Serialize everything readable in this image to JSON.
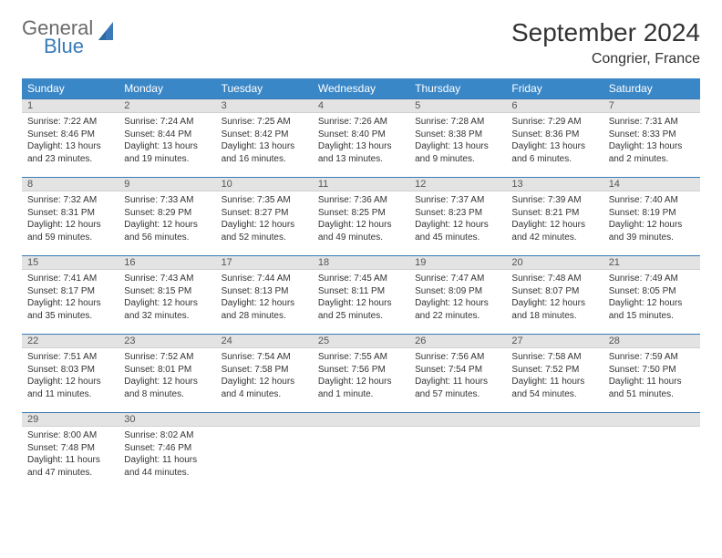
{
  "brand": {
    "part1": "General",
    "part2": "Blue"
  },
  "title": "September 2024",
  "location": "Congrier, France",
  "colors": {
    "header_bg": "#3a87c7",
    "header_text": "#ffffff",
    "daynum_bg": "#e3e3e3",
    "rule": "#3a7ab8",
    "body_text": "#333333",
    "logo_gray": "#6a6a6a",
    "logo_blue": "#3a7ab8"
  },
  "weekdays": [
    "Sunday",
    "Monday",
    "Tuesday",
    "Wednesday",
    "Thursday",
    "Friday",
    "Saturday"
  ],
  "weeks": [
    [
      {
        "n": "1",
        "sr": "7:22 AM",
        "ss": "8:46 PM",
        "dl": "13 hours and 23 minutes."
      },
      {
        "n": "2",
        "sr": "7:24 AM",
        "ss": "8:44 PM",
        "dl": "13 hours and 19 minutes."
      },
      {
        "n": "3",
        "sr": "7:25 AM",
        "ss": "8:42 PM",
        "dl": "13 hours and 16 minutes."
      },
      {
        "n": "4",
        "sr": "7:26 AM",
        "ss": "8:40 PM",
        "dl": "13 hours and 13 minutes."
      },
      {
        "n": "5",
        "sr": "7:28 AM",
        "ss": "8:38 PM",
        "dl": "13 hours and 9 minutes."
      },
      {
        "n": "6",
        "sr": "7:29 AM",
        "ss": "8:36 PM",
        "dl": "13 hours and 6 minutes."
      },
      {
        "n": "7",
        "sr": "7:31 AM",
        "ss": "8:33 PM",
        "dl": "13 hours and 2 minutes."
      }
    ],
    [
      {
        "n": "8",
        "sr": "7:32 AM",
        "ss": "8:31 PM",
        "dl": "12 hours and 59 minutes."
      },
      {
        "n": "9",
        "sr": "7:33 AM",
        "ss": "8:29 PM",
        "dl": "12 hours and 56 minutes."
      },
      {
        "n": "10",
        "sr": "7:35 AM",
        "ss": "8:27 PM",
        "dl": "12 hours and 52 minutes."
      },
      {
        "n": "11",
        "sr": "7:36 AM",
        "ss": "8:25 PM",
        "dl": "12 hours and 49 minutes."
      },
      {
        "n": "12",
        "sr": "7:37 AM",
        "ss": "8:23 PM",
        "dl": "12 hours and 45 minutes."
      },
      {
        "n": "13",
        "sr": "7:39 AM",
        "ss": "8:21 PM",
        "dl": "12 hours and 42 minutes."
      },
      {
        "n": "14",
        "sr": "7:40 AM",
        "ss": "8:19 PM",
        "dl": "12 hours and 39 minutes."
      }
    ],
    [
      {
        "n": "15",
        "sr": "7:41 AM",
        "ss": "8:17 PM",
        "dl": "12 hours and 35 minutes."
      },
      {
        "n": "16",
        "sr": "7:43 AM",
        "ss": "8:15 PM",
        "dl": "12 hours and 32 minutes."
      },
      {
        "n": "17",
        "sr": "7:44 AM",
        "ss": "8:13 PM",
        "dl": "12 hours and 28 minutes."
      },
      {
        "n": "18",
        "sr": "7:45 AM",
        "ss": "8:11 PM",
        "dl": "12 hours and 25 minutes."
      },
      {
        "n": "19",
        "sr": "7:47 AM",
        "ss": "8:09 PM",
        "dl": "12 hours and 22 minutes."
      },
      {
        "n": "20",
        "sr": "7:48 AM",
        "ss": "8:07 PM",
        "dl": "12 hours and 18 minutes."
      },
      {
        "n": "21",
        "sr": "7:49 AM",
        "ss": "8:05 PM",
        "dl": "12 hours and 15 minutes."
      }
    ],
    [
      {
        "n": "22",
        "sr": "7:51 AM",
        "ss": "8:03 PM",
        "dl": "12 hours and 11 minutes."
      },
      {
        "n": "23",
        "sr": "7:52 AM",
        "ss": "8:01 PM",
        "dl": "12 hours and 8 minutes."
      },
      {
        "n": "24",
        "sr": "7:54 AM",
        "ss": "7:58 PM",
        "dl": "12 hours and 4 minutes."
      },
      {
        "n": "25",
        "sr": "7:55 AM",
        "ss": "7:56 PM",
        "dl": "12 hours and 1 minute."
      },
      {
        "n": "26",
        "sr": "7:56 AM",
        "ss": "7:54 PM",
        "dl": "11 hours and 57 minutes."
      },
      {
        "n": "27",
        "sr": "7:58 AM",
        "ss": "7:52 PM",
        "dl": "11 hours and 54 minutes."
      },
      {
        "n": "28",
        "sr": "7:59 AM",
        "ss": "7:50 PM",
        "dl": "11 hours and 51 minutes."
      }
    ],
    [
      {
        "n": "29",
        "sr": "8:00 AM",
        "ss": "7:48 PM",
        "dl": "11 hours and 47 minutes."
      },
      {
        "n": "30",
        "sr": "8:02 AM",
        "ss": "7:46 PM",
        "dl": "11 hours and 44 minutes."
      },
      null,
      null,
      null,
      null,
      null
    ]
  ],
  "labels": {
    "sunrise": "Sunrise:",
    "sunset": "Sunset:",
    "daylight": "Daylight:"
  }
}
